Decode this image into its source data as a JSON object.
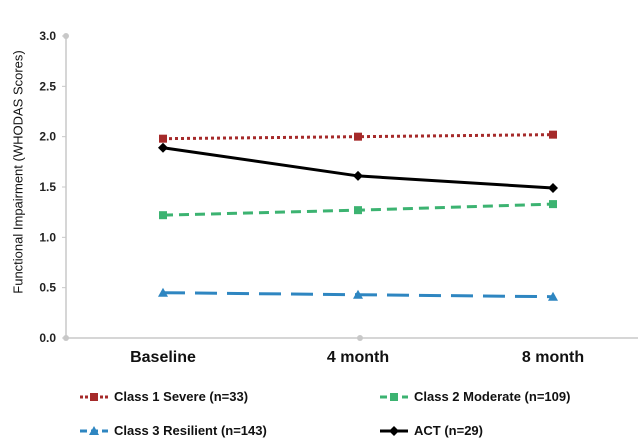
{
  "chart_data": {
    "type": "line",
    "ylabel": "Functional Impairment (WHODAS Scores)",
    "xlabel": "",
    "categories": [
      "Baseline",
      "4 month",
      "8 month"
    ],
    "ylim": [
      0,
      3.0
    ],
    "yticks": [
      "0.0",
      "0.5",
      "1.0",
      "1.5",
      "2.0",
      "2.5",
      "3.0"
    ],
    "grid": false,
    "legend_position": "bottom",
    "series": [
      {
        "name": "Class 1 Severe (n=33)",
        "values": [
          1.98,
          2.0,
          2.02
        ],
        "color": "#a52a2a",
        "dash": "dotted",
        "marker": "square"
      },
      {
        "name": "Class 2 Moderate (n=109)",
        "values": [
          1.22,
          1.27,
          1.33
        ],
        "color": "#3cb371",
        "dash": "dashed",
        "marker": "square"
      },
      {
        "name": "Class 3 Resilient (n=143)",
        "values": [
          0.45,
          0.43,
          0.41
        ],
        "color": "#2e86c1",
        "dash": "longdash",
        "marker": "triangle"
      },
      {
        "name": "ACT (n=29)",
        "values": [
          1.89,
          1.61,
          1.49
        ],
        "color": "#000000",
        "dash": "solid",
        "marker": "diamond"
      }
    ]
  }
}
